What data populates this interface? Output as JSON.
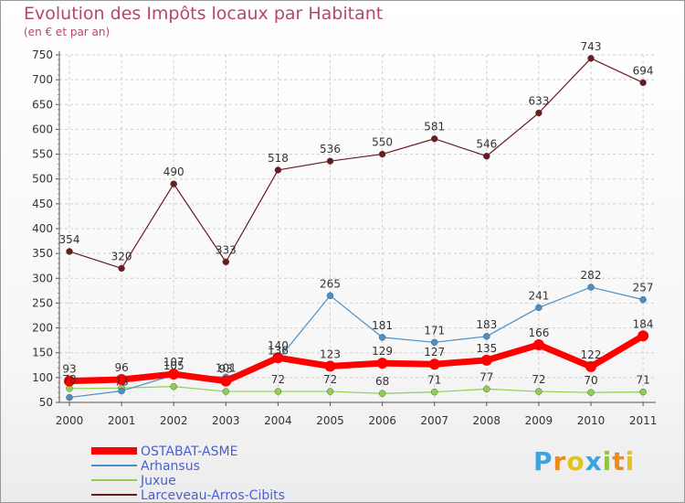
{
  "chart_data": {
    "type": "line",
    "title": "Evolution des Impôts locaux par Habitant",
    "subtitle": "(en € et par an)",
    "x": [
      "2000",
      "2001",
      "2002",
      "2003",
      "2004",
      "2005",
      "2006",
      "2007",
      "2008",
      "2009",
      "2010",
      "2011"
    ],
    "ylim": [
      50,
      750
    ],
    "yticks": [
      50,
      100,
      150,
      200,
      250,
      300,
      350,
      400,
      450,
      500,
      550,
      600,
      650,
      700,
      750
    ],
    "grid": true,
    "legend_position": "bottom-left",
    "series": [
      {
        "name": "Larceveau-Arros-Cibits",
        "color": "#6b1a1f",
        "values": [
          354,
          320,
          490,
          333,
          518,
          536,
          550,
          581,
          546,
          633,
          743,
          694
        ],
        "labels": [
          "354",
          "320",
          "490",
          "333",
          "518",
          "536",
          "550",
          "581",
          "546",
          "633",
          "743",
          "694"
        ]
      },
      {
        "name": "Arhansus",
        "color": "#4a90c8",
        "values": [
          60,
          73,
          105,
          101,
          136,
          265,
          181,
          171,
          183,
          241,
          282,
          257
        ],
        "labels": [
          "",
          "",
          "",
          "",
          "",
          "265",
          "181",
          "171",
          "183",
          "241",
          "282",
          "257"
        ]
      },
      {
        "name": "Juxue",
        "color": "#8fd14f",
        "values": [
          78,
          79,
          82,
          72,
          72,
          72,
          68,
          71,
          77,
          72,
          70,
          71
        ],
        "labels": [
          "",
          "",
          "",
          "",
          "72",
          "72",
          "68",
          "71",
          "77",
          "72",
          "70",
          "71"
        ]
      },
      {
        "name": "OSTABAT-ASME",
        "color": "#ff0000",
        "values": [
          93,
          96,
          107,
          93,
          140,
          123,
          129,
          127,
          135,
          166,
          122,
          184
        ],
        "labels": [
          "93",
          "96",
          "107",
          "93",
          "140",
          "123",
          "129",
          "127",
          "135",
          "166",
          "122",
          "184"
        ]
      }
    ],
    "extra_labels": [
      "73",
      "105",
      "101",
      "136",
      "78"
    ]
  },
  "legend": [
    {
      "name": "OSTABAT-ASME",
      "color": "#ff0000"
    },
    {
      "name": "Arhansus",
      "color": "#4a90c8"
    },
    {
      "name": "Juxue",
      "color": "#8fd14f"
    },
    {
      "name": "Larceveau-Arros-Cibits",
      "color": "#6b1a1f"
    }
  ],
  "logo": {
    "letters": [
      "P",
      "r",
      "o",
      "x",
      "i",
      "t",
      "i"
    ],
    "colors": [
      "#3aa3e0",
      "#f08a1c",
      "#e5c21a",
      "#3aa3e0",
      "#8fc63f",
      "#f08a1c",
      "#e5c21a"
    ]
  }
}
